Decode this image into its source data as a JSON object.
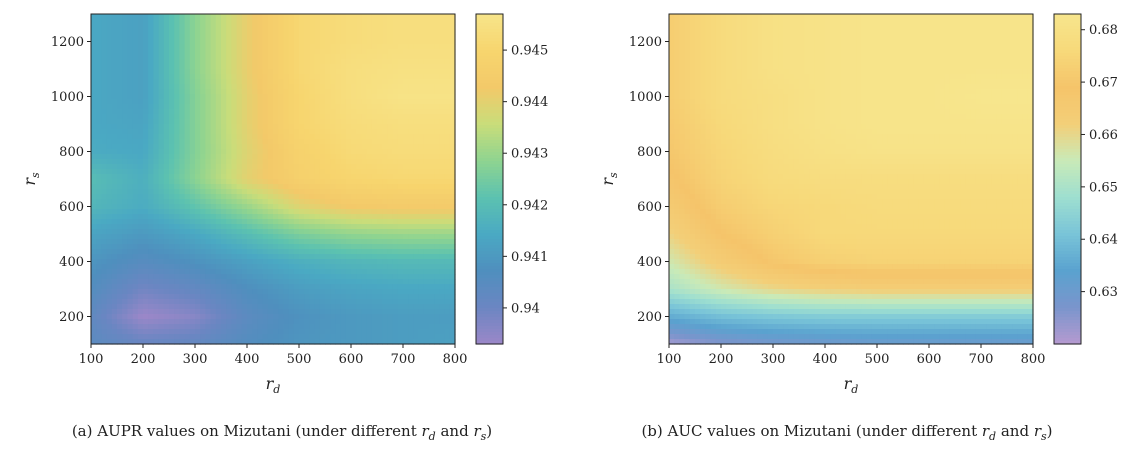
{
  "chart_data": [
    {
      "type": "heatmap",
      "subtype": "filled-contour",
      "caption": {
        "prefix": "(a) AUPR values on Mizutani (under different ",
        "var1_main": "r",
        "var1_sub": "d",
        "mid": " and ",
        "var2_main": "r",
        "var2_sub": "s",
        "suffix": ")"
      },
      "xlabel": {
        "main": "r",
        "sub": "d"
      },
      "ylabel": {
        "main": "r",
        "sub": "s"
      },
      "xlim": [
        100,
        800
      ],
      "ylim": [
        100,
        1300
      ],
      "x_ticks": [
        100,
        200,
        300,
        400,
        500,
        600,
        700,
        800
      ],
      "y_ticks": [
        200,
        400,
        600,
        800,
        1000,
        1200
      ],
      "x": [
        100,
        200,
        300,
        400,
        500,
        600,
        700,
        800
      ],
      "y": [
        100,
        200,
        300,
        400,
        500,
        600,
        700,
        800,
        900,
        1000,
        1100,
        1200,
        1300
      ],
      "z": [
        [
          0.9404,
          0.9401,
          0.9402,
          0.9406,
          0.9409,
          0.941,
          0.9411,
          0.9412
        ],
        [
          0.9403,
          0.9393,
          0.9396,
          0.9404,
          0.9408,
          0.941,
          0.9411,
          0.9411
        ],
        [
          0.9406,
          0.9399,
          0.9402,
          0.9407,
          0.9411,
          0.9413,
          0.9414,
          0.9414
        ],
        [
          0.9409,
          0.9405,
          0.9408,
          0.9412,
          0.9416,
          0.9418,
          0.9419,
          0.9419
        ],
        [
          0.9413,
          0.941,
          0.9414,
          0.942,
          0.9426,
          0.9429,
          0.943,
          0.943
        ],
        [
          0.9418,
          0.9415,
          0.9422,
          0.943,
          0.9439,
          0.9443,
          0.9444,
          0.9444
        ],
        [
          0.942,
          0.9416,
          0.9428,
          0.944,
          0.9447,
          0.945,
          0.9451,
          0.9451
        ],
        [
          0.9415,
          0.9414,
          0.9427,
          0.9439,
          0.9448,
          0.9452,
          0.9453,
          0.9453
        ],
        [
          0.9414,
          0.9413,
          0.9427,
          0.944,
          0.945,
          0.9453,
          0.9454,
          0.9454
        ],
        [
          0.9414,
          0.9412,
          0.9427,
          0.944,
          0.945,
          0.9454,
          0.9456,
          0.9456
        ],
        [
          0.9414,
          0.9412,
          0.9428,
          0.9441,
          0.9451,
          0.9454,
          0.9455,
          0.9455
        ],
        [
          0.9414,
          0.9412,
          0.9428,
          0.9441,
          0.9451,
          0.9453,
          0.9454,
          0.9454
        ],
        [
          0.9414,
          0.9412,
          0.9428,
          0.9441,
          0.9451,
          0.9453,
          0.9454,
          0.9454
        ]
      ],
      "colorbar": {
        "range": [
          0.9393,
          0.9457
        ],
        "ticks": [
          0.94,
          0.941,
          0.942,
          0.943,
          0.944,
          0.945
        ],
        "tick_labels": [
          "0.94",
          "0.941",
          "0.942",
          "0.943",
          "0.944",
          "0.945"
        ]
      },
      "colormap": [
        "#9b87c8",
        "#6b86c2",
        "#4f8fbe",
        "#4aa9c3",
        "#5cc2b0",
        "#8fd490",
        "#c9dd7a",
        "#f3c969",
        "#f7d56e",
        "#f7e58a"
      ]
    },
    {
      "type": "heatmap",
      "subtype": "filled-contour",
      "caption": {
        "prefix": "(b) AUC values on Mizutani (under different ",
        "var1_main": "r",
        "var1_sub": "d",
        "mid": " and ",
        "var2_main": "r",
        "var2_sub": "s",
        "suffix": ")"
      },
      "xlabel": {
        "main": "r",
        "sub": "d"
      },
      "ylabel": {
        "main": "r",
        "sub": "s"
      },
      "xlim": [
        100,
        800
      ],
      "ylim": [
        100,
        1300
      ],
      "x_ticks": [
        100,
        200,
        300,
        400,
        500,
        600,
        700,
        800
      ],
      "y_ticks": [
        200,
        400,
        600,
        800,
        1000,
        1200
      ],
      "x": [
        100,
        200,
        300,
        400,
        500,
        600,
        700,
        800
      ],
      "y": [
        100,
        200,
        300,
        400,
        500,
        600,
        700,
        800,
        900,
        1000,
        1100,
        1200,
        1300
      ],
      "z": [
        [
          0.622,
          0.626,
          0.628,
          0.629,
          0.63,
          0.63,
          0.63,
          0.63
        ],
        [
          0.636,
          0.64,
          0.642,
          0.643,
          0.643,
          0.643,
          0.643,
          0.643
        ],
        [
          0.65,
          0.656,
          0.66,
          0.662,
          0.663,
          0.663,
          0.663,
          0.663
        ],
        [
          0.656,
          0.664,
          0.67,
          0.673,
          0.674,
          0.674,
          0.674,
          0.674
        ],
        [
          0.661,
          0.669,
          0.673,
          0.676,
          0.676,
          0.676,
          0.676,
          0.676
        ],
        [
          0.665,
          0.672,
          0.675,
          0.676,
          0.677,
          0.677,
          0.677,
          0.677
        ],
        [
          0.668,
          0.674,
          0.677,
          0.678,
          0.678,
          0.678,
          0.678,
          0.678
        ],
        [
          0.67,
          0.675,
          0.678,
          0.68,
          0.681,
          0.681,
          0.681,
          0.681
        ],
        [
          0.671,
          0.676,
          0.679,
          0.681,
          0.682,
          0.682,
          0.682,
          0.682
        ],
        [
          0.672,
          0.677,
          0.679,
          0.681,
          0.682,
          0.682,
          0.683,
          0.683
        ],
        [
          0.672,
          0.677,
          0.68,
          0.681,
          0.682,
          0.682,
          0.682,
          0.682
        ],
        [
          0.672,
          0.677,
          0.68,
          0.681,
          0.682,
          0.682,
          0.682,
          0.682
        ],
        [
          0.672,
          0.677,
          0.68,
          0.681,
          0.682,
          0.682,
          0.682,
          0.682
        ]
      ],
      "colorbar": {
        "range": [
          0.62,
          0.683
        ],
        "ticks": [
          0.63,
          0.64,
          0.65,
          0.66,
          0.67,
          0.68
        ],
        "tick_labels": [
          "0.63",
          "0.64",
          "0.65",
          "0.66",
          "0.67",
          "0.68"
        ]
      },
      "colormap": [
        "#b59ad0",
        "#7a95cc",
        "#5aa2cf",
        "#79c4d8",
        "#9edfd0",
        "#c9eab8",
        "#f3cf78",
        "#f5c46a",
        "#f7d97a",
        "#f7e68d"
      ]
    }
  ]
}
